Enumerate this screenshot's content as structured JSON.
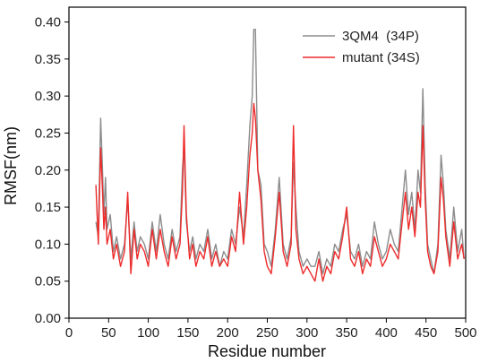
{
  "chart_data": {
    "type": "line",
    "xlabel": "Residue number",
    "ylabel": "RMSF(nm)",
    "xlim": [
      0,
      500
    ],
    "ylim": [
      0.0,
      0.42
    ],
    "xticks": [
      0,
      50,
      100,
      150,
      200,
      250,
      300,
      350,
      400,
      450,
      500
    ],
    "yticks": [
      0.0,
      0.05,
      0.1,
      0.15,
      0.2,
      0.25,
      0.3,
      0.35,
      0.4
    ],
    "ytick_labels": [
      "0.00",
      "0.05",
      "0.10",
      "0.15",
      "0.20",
      "0.25",
      "0.30",
      "0.35",
      "0.40"
    ],
    "grid": false,
    "legend_position": "top-right",
    "series": [
      {
        "name": "3QM4  (34P)",
        "color": "#8c8c8c",
        "x": [
          34,
          37,
          40,
          42,
          44,
          46,
          48,
          52,
          56,
          60,
          65,
          70,
          74,
          78,
          82,
          86,
          90,
          95,
          100,
          105,
          110,
          115,
          120,
          125,
          130,
          135,
          140,
          143,
          145,
          148,
          152,
          156,
          160,
          165,
          170,
          175,
          180,
          185,
          190,
          195,
          200,
          205,
          210,
          215,
          220,
          224,
          228,
          231,
          233,
          235,
          238,
          242,
          246,
          250,
          255,
          260,
          265,
          270,
          275,
          280,
          283,
          286,
          290,
          295,
          300,
          305,
          310,
          315,
          320,
          325,
          330,
          335,
          340,
          345,
          350,
          355,
          360,
          365,
          370,
          375,
          380,
          385,
          390,
          395,
          400,
          405,
          410,
          415,
          420,
          424,
          428,
          432,
          436,
          440,
          443,
          446,
          449,
          452,
          456,
          460,
          465,
          469,
          472,
          475,
          480,
          485,
          490,
          495,
          498
        ],
        "values": [
          0.13,
          0.11,
          0.27,
          0.21,
          0.14,
          0.19,
          0.12,
          0.14,
          0.09,
          0.11,
          0.08,
          0.1,
          0.16,
          0.08,
          0.13,
          0.09,
          0.11,
          0.1,
          0.08,
          0.13,
          0.09,
          0.14,
          0.1,
          0.08,
          0.12,
          0.09,
          0.11,
          0.2,
          0.23,
          0.13,
          0.09,
          0.11,
          0.08,
          0.1,
          0.09,
          0.12,
          0.08,
          0.1,
          0.07,
          0.09,
          0.08,
          0.12,
          0.1,
          0.15,
          0.11,
          0.18,
          0.26,
          0.3,
          0.39,
          0.39,
          0.2,
          0.18,
          0.1,
          0.09,
          0.07,
          0.12,
          0.19,
          0.1,
          0.08,
          0.11,
          0.21,
          0.15,
          0.09,
          0.07,
          0.08,
          0.07,
          0.07,
          0.09,
          0.06,
          0.08,
          0.07,
          0.1,
          0.09,
          0.12,
          0.14,
          0.09,
          0.08,
          0.1,
          0.07,
          0.09,
          0.08,
          0.13,
          0.1,
          0.08,
          0.09,
          0.12,
          0.1,
          0.09,
          0.15,
          0.2,
          0.14,
          0.17,
          0.12,
          0.2,
          0.17,
          0.31,
          0.18,
          0.1,
          0.08,
          0.06,
          0.1,
          0.22,
          0.18,
          0.12,
          0.08,
          0.15,
          0.09,
          0.12,
          0.08
        ]
      },
      {
        "name": "mutant (34S)",
        "color": "#ee2b2b",
        "x": [
          34,
          37,
          40,
          42,
          44,
          46,
          48,
          52,
          56,
          60,
          65,
          70,
          74,
          78,
          82,
          86,
          90,
          95,
          100,
          105,
          110,
          115,
          120,
          125,
          130,
          135,
          140,
          143,
          145,
          148,
          152,
          156,
          160,
          165,
          170,
          175,
          180,
          185,
          190,
          195,
          200,
          205,
          210,
          215,
          220,
          224,
          228,
          231,
          233,
          235,
          238,
          242,
          246,
          250,
          255,
          260,
          265,
          270,
          275,
          280,
          283,
          286,
          290,
          295,
          300,
          305,
          310,
          315,
          320,
          325,
          330,
          335,
          340,
          345,
          350,
          355,
          360,
          365,
          370,
          375,
          380,
          385,
          390,
          395,
          400,
          405,
          410,
          415,
          420,
          424,
          428,
          432,
          436,
          440,
          443,
          446,
          449,
          452,
          456,
          460,
          465,
          469,
          472,
          475,
          480,
          485,
          490,
          495,
          498
        ],
        "values": [
          0.18,
          0.1,
          0.23,
          0.18,
          0.12,
          0.15,
          0.1,
          0.12,
          0.08,
          0.1,
          0.07,
          0.09,
          0.17,
          0.06,
          0.12,
          0.08,
          0.1,
          0.09,
          0.07,
          0.12,
          0.08,
          0.12,
          0.09,
          0.07,
          0.11,
          0.08,
          0.1,
          0.17,
          0.26,
          0.14,
          0.08,
          0.1,
          0.07,
          0.09,
          0.08,
          0.11,
          0.07,
          0.09,
          0.07,
          0.08,
          0.07,
          0.11,
          0.09,
          0.17,
          0.1,
          0.15,
          0.22,
          0.25,
          0.29,
          0.27,
          0.2,
          0.16,
          0.09,
          0.07,
          0.06,
          0.11,
          0.17,
          0.09,
          0.07,
          0.1,
          0.26,
          0.12,
          0.08,
          0.06,
          0.07,
          0.06,
          0.05,
          0.08,
          0.05,
          0.07,
          0.06,
          0.09,
          0.08,
          0.11,
          0.15,
          0.08,
          0.07,
          0.09,
          0.06,
          0.08,
          0.07,
          0.11,
          0.09,
          0.07,
          0.08,
          0.1,
          0.09,
          0.08,
          0.13,
          0.17,
          0.12,
          0.15,
          0.11,
          0.17,
          0.15,
          0.26,
          0.16,
          0.09,
          0.07,
          0.06,
          0.09,
          0.19,
          0.16,
          0.11,
          0.07,
          0.13,
          0.08,
          0.1,
          0.08
        ]
      }
    ]
  }
}
